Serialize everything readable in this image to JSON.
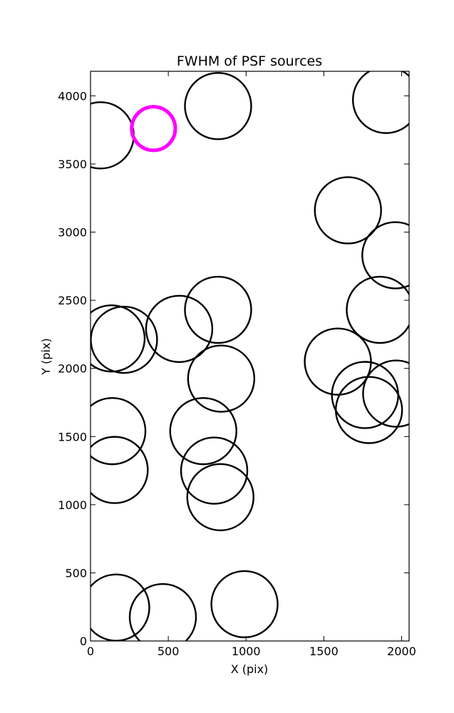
{
  "chart_data": {
    "type": "scatter",
    "title": "FWHM of PSF sources",
    "xlabel": "X (pix)",
    "ylabel": "Y (pix)",
    "xlim": [
      0,
      2048
    ],
    "ylim": [
      0,
      4180
    ],
    "xticks": [
      "0",
      "500",
      "1000",
      "1500",
      "2000"
    ],
    "xtick_values": [
      0,
      500,
      1000,
      1500,
      2000
    ],
    "yticks": [
      "0",
      "500",
      "1000",
      "1500",
      "2000",
      "2500",
      "3000",
      "3500",
      "4000"
    ],
    "ytick_values": [
      0,
      500,
      1000,
      1500,
      2000,
      2500,
      3000,
      3500,
      4000
    ],
    "grid": false,
    "circle_color": "#000000",
    "highlight_color": "#ff00ff",
    "sources": [
      {
        "x": 65,
        "y": 3710,
        "r": 213
      },
      {
        "x": 405,
        "y": 3760,
        "r": 140,
        "highlight": true
      },
      {
        "x": 820,
        "y": 3925,
        "r": 213
      },
      {
        "x": 1900,
        "y": 3970,
        "r": 213
      },
      {
        "x": 1655,
        "y": 3160,
        "r": 213
      },
      {
        "x": 1960,
        "y": 2830,
        "r": 213
      },
      {
        "x": 820,
        "y": 2430,
        "r": 213
      },
      {
        "x": 1860,
        "y": 2430,
        "r": 213
      },
      {
        "x": 135,
        "y": 2220,
        "r": 213
      },
      {
        "x": 215,
        "y": 2210,
        "r": 213
      },
      {
        "x": 570,
        "y": 2290,
        "r": 213
      },
      {
        "x": 1590,
        "y": 2050,
        "r": 213
      },
      {
        "x": 840,
        "y": 1925,
        "r": 213
      },
      {
        "x": 1765,
        "y": 1805,
        "r": 213
      },
      {
        "x": 1965,
        "y": 1815,
        "r": 213
      },
      {
        "x": 1790,
        "y": 1695,
        "r": 213
      },
      {
        "x": 140,
        "y": 1540,
        "r": 213
      },
      {
        "x": 725,
        "y": 1540,
        "r": 213
      },
      {
        "x": 155,
        "y": 1255,
        "r": 213
      },
      {
        "x": 795,
        "y": 1250,
        "r": 213
      },
      {
        "x": 835,
        "y": 1055,
        "r": 213
      },
      {
        "x": 165,
        "y": 245,
        "r": 213
      },
      {
        "x": 465,
        "y": 175,
        "r": 213
      },
      {
        "x": 990,
        "y": 270,
        "r": 213
      }
    ]
  }
}
